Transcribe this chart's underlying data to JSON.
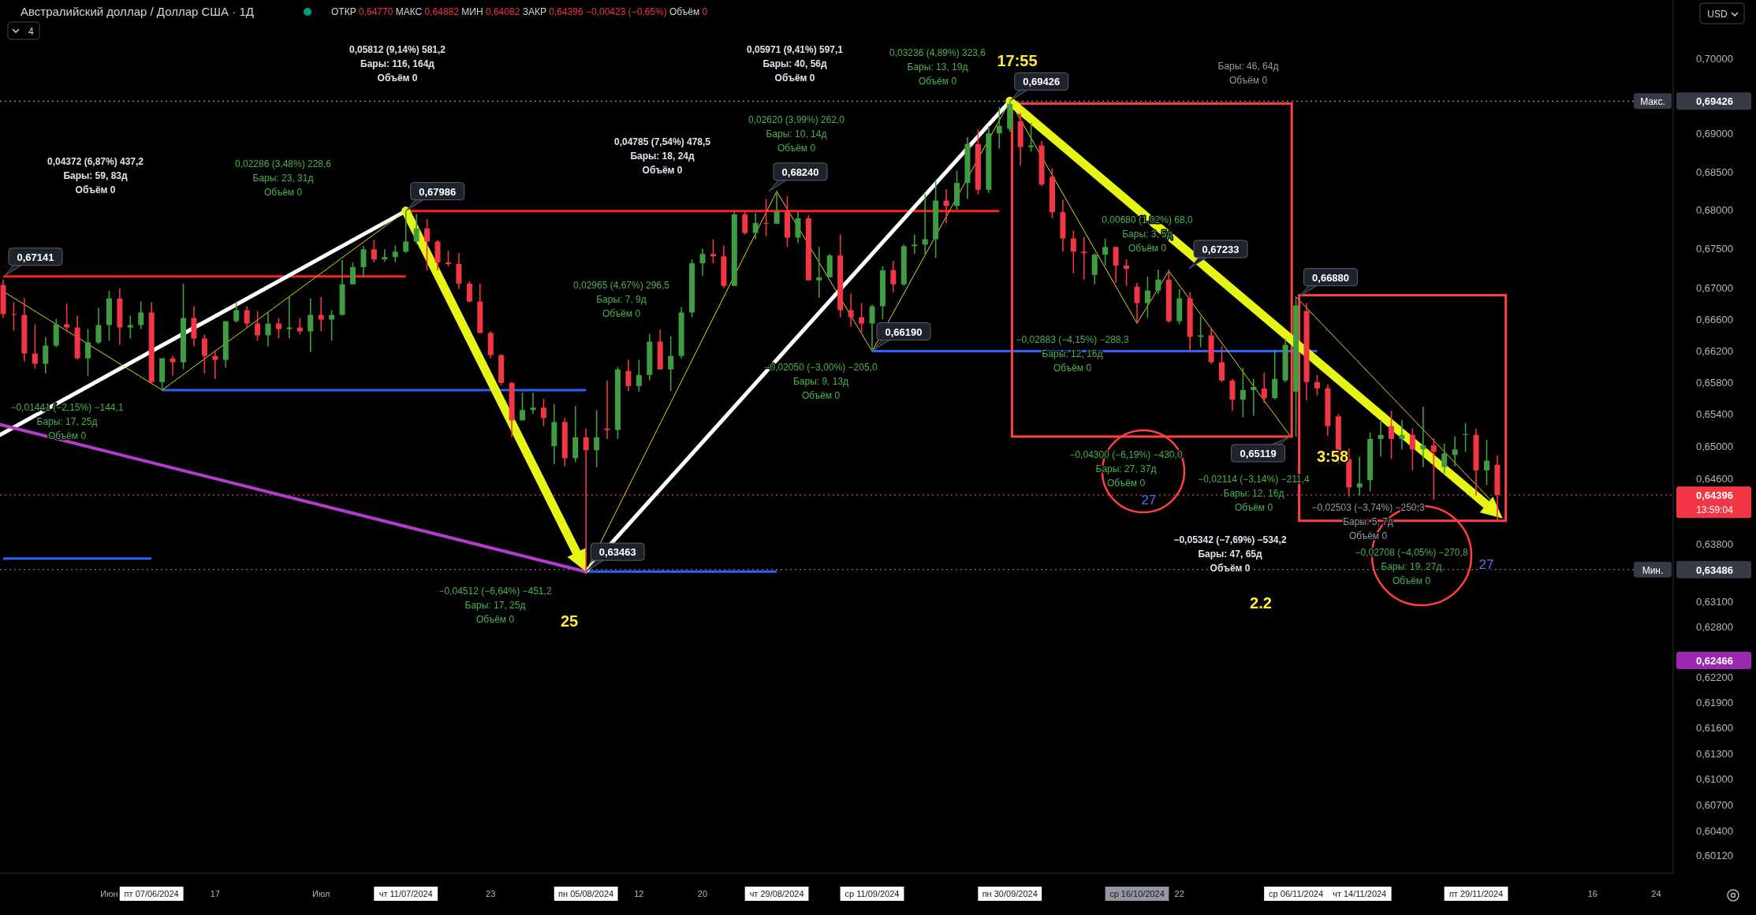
{
  "chart_data": {
    "type": "candlestick",
    "title": "Австралийский доллар / Доллар США · 1Д",
    "subtitle": "ОТКР 0,64770 МАКС 0,64882 МИН 0,64082 ЗАКР 0,64396 −0,00423 (−0,65%) Объём 0",
    "log": true,
    "ylim": [
      0.5991,
      0.7078
    ],
    "yticks": [
      {
        "value": 0.7,
        "label": "0,70000"
      },
      {
        "value": 0.69,
        "label": "0,69000"
      },
      {
        "value": 0.685,
        "label": "0,68500"
      },
      {
        "value": 0.68,
        "label": "0,68000"
      },
      {
        "value": 0.675,
        "label": "0,67500"
      },
      {
        "value": 0.67,
        "label": "0,67000"
      },
      {
        "value": 0.666,
        "label": "0,66600"
      },
      {
        "value": 0.662,
        "label": "0,66200"
      },
      {
        "value": 0.658,
        "label": "0,65800"
      },
      {
        "value": 0.654,
        "label": "0,65400"
      },
      {
        "value": 0.65,
        "label": "0,65000"
      },
      {
        "value": 0.646,
        "label": "0,64600"
      },
      {
        "value": 0.638,
        "label": "0,63800"
      },
      {
        "value": 0.631,
        "label": "0,63100"
      },
      {
        "value": 0.628,
        "label": "0,62800"
      },
      {
        "value": 0.622,
        "label": "0,62200"
      },
      {
        "value": 0.619,
        "label": "0,61900"
      },
      {
        "value": 0.616,
        "label": "0,61600"
      },
      {
        "value": 0.613,
        "label": "0,61300"
      },
      {
        "value": 0.61,
        "label": "0,61000"
      },
      {
        "value": 0.607,
        "label": "0,60700"
      },
      {
        "value": 0.604,
        "label": "0,60400"
      },
      {
        "value": 0.6012,
        "label": "0,60120"
      }
    ],
    "categories": [
      null,
      null,
      null,
      null,
      null,
      null,
      null,
      null,
      null,
      null,
      "Июн",
      null,
      null,
      null,
      "пт 07/06/2024",
      null,
      null,
      null,
      null,
      null,
      "17",
      null,
      null,
      null,
      null,
      null,
      null,
      null,
      null,
      null,
      "Июл",
      null,
      null,
      null,
      null,
      null,
      null,
      null,
      "чт 11/07/2024",
      null,
      null,
      null,
      null,
      null,
      null,
      null,
      "23",
      null,
      null,
      null,
      null,
      null,
      null,
      null,
      null,
      "пн 05/08/2024",
      null,
      null,
      null,
      null,
      "12",
      null,
      null,
      null,
      null,
      null,
      "20",
      null,
      null,
      null,
      null,
      null,
      null,
      "чт 29/08/2024",
      null,
      null,
      null,
      null,
      null,
      null,
      null,
      null,
      "ср 11/09/2024",
      null,
      null,
      null,
      null,
      null,
      null,
      null,
      null,
      null,
      null,
      null,
      null,
      "пн 30/09/2024",
      null,
      null,
      null,
      null,
      null,
      null,
      null,
      null,
      null,
      null,
      null,
      "ср 16/10/2024",
      null,
      null,
      null,
      "22",
      null,
      null,
      null,
      null,
      null,
      null,
      null,
      null,
      null,
      null,
      "ср 06/11/2024",
      null,
      null,
      null,
      null,
      null,
      "чт 14/11/2024",
      null,
      null,
      null,
      null,
      null,
      null,
      null,
      null,
      null,
      null,
      "пт 29/11/2024",
      null,
      null,
      null,
      null,
      null,
      null,
      null,
      null,
      null,
      null,
      "16",
      null,
      null,
      null,
      null,
      null,
      "24",
      null
    ],
    "ohlc": [
      [
        0.6703,
        0.671,
        0.6661,
        0.6666
      ],
      [
        0.6666,
        0.6681,
        0.6645,
        0.6665
      ],
      [
        0.6665,
        0.6686,
        0.6606,
        0.6616
      ],
      [
        0.6616,
        0.6653,
        0.6597,
        0.6603
      ],
      [
        0.6603,
        0.6637,
        0.6591,
        0.6626
      ],
      [
        0.6626,
        0.666,
        0.6624,
        0.6653
      ],
      [
        0.6653,
        0.6679,
        0.6644,
        0.6649
      ],
      [
        0.6649,
        0.6664,
        0.6608,
        0.661
      ],
      [
        0.661,
        0.6647,
        0.6588,
        0.663
      ],
      [
        0.663,
        0.6674,
        0.6628,
        0.6652
      ],
      [
        0.6652,
        0.6696,
        0.6632,
        0.6686
      ],
      [
        0.6686,
        0.6699,
        0.6627,
        0.6649
      ],
      [
        0.6649,
        0.6664,
        0.6635,
        0.6652
      ],
      [
        0.6652,
        0.6682,
        0.6647,
        0.6668
      ],
      [
        0.6668,
        0.6681,
        0.6579,
        0.658
      ],
      [
        0.658,
        0.661,
        0.657,
        0.661
      ],
      [
        0.661,
        0.6613,
        0.6588,
        0.6605
      ],
      [
        0.6605,
        0.6705,
        0.6596,
        0.6661
      ],
      [
        0.6661,
        0.6676,
        0.6625,
        0.6635
      ],
      [
        0.6635,
        0.664,
        0.6591,
        0.6613
      ],
      [
        0.6613,
        0.662,
        0.6584,
        0.6608
      ],
      [
        0.6608,
        0.6657,
        0.6598,
        0.6657
      ],
      [
        0.6657,
        0.6681,
        0.6655,
        0.6671
      ],
      [
        0.6671,
        0.6676,
        0.6649,
        0.6654
      ],
      [
        0.6654,
        0.667,
        0.6632,
        0.6639
      ],
      [
        0.6639,
        0.6669,
        0.6625,
        0.6654
      ],
      [
        0.6654,
        0.6661,
        0.6635,
        0.6647
      ],
      [
        0.6647,
        0.6688,
        0.6635,
        0.6649
      ],
      [
        0.6649,
        0.6661,
        0.664,
        0.6644
      ],
      [
        0.6644,
        0.6686,
        0.6618,
        0.6665
      ],
      [
        0.6665,
        0.6688,
        0.6644,
        0.6659
      ],
      [
        0.6659,
        0.6671,
        0.6632,
        0.6665
      ],
      [
        0.6665,
        0.6735,
        0.6664,
        0.6704
      ],
      [
        0.6704,
        0.6732,
        0.6704,
        0.6726
      ],
      [
        0.6726,
        0.6753,
        0.6713,
        0.6749
      ],
      [
        0.6749,
        0.6761,
        0.6732,
        0.6736
      ],
      [
        0.6736,
        0.6749,
        0.6733,
        0.6739
      ],
      [
        0.6739,
        0.6754,
        0.6732,
        0.6746
      ],
      [
        0.6746,
        0.67986,
        0.6744,
        0.6759
      ],
      [
        0.6759,
        0.6795,
        0.6756,
        0.6776
      ],
      [
        0.6776,
        0.6788,
        0.6722,
        0.6759
      ],
      [
        0.6759,
        0.6761,
        0.6722,
        0.6732
      ],
      [
        0.6732,
        0.6747,
        0.6727,
        0.673
      ],
      [
        0.673,
        0.6744,
        0.6698,
        0.6705
      ],
      [
        0.6705,
        0.6708,
        0.6681,
        0.6682
      ],
      [
        0.6682,
        0.6705,
        0.6642,
        0.6642
      ],
      [
        0.6642,
        0.6644,
        0.661,
        0.6614
      ],
      [
        0.6614,
        0.6615,
        0.6576,
        0.6579
      ],
      [
        0.6579,
        0.658,
        0.6511,
        0.6532
      ],
      [
        0.6532,
        0.6567,
        0.6532,
        0.6545
      ],
      [
        0.6545,
        0.6567,
        0.654,
        0.6548
      ],
      [
        0.6548,
        0.6559,
        0.6525,
        0.6535
      ],
      [
        0.65,
        0.6552,
        0.6478,
        0.653
      ],
      [
        0.653,
        0.6535,
        0.6475,
        0.6485
      ],
      [
        0.6485,
        0.655,
        0.648,
        0.6511
      ],
      [
        0.6511,
        0.6522,
        0.63463,
        0.6495
      ],
      [
        0.6495,
        0.6545,
        0.6474,
        0.6511
      ],
      [
        0.6522,
        0.6582,
        0.6509,
        0.652
      ],
      [
        0.652,
        0.6599,
        0.6509,
        0.6596
      ],
      [
        0.6594,
        0.6608,
        0.6569,
        0.6575
      ],
      [
        0.6575,
        0.6608,
        0.6568,
        0.6589
      ],
      [
        0.6589,
        0.6641,
        0.6582,
        0.6631
      ],
      [
        0.6631,
        0.6646,
        0.6596,
        0.6596
      ],
      [
        0.6596,
        0.6638,
        0.6569,
        0.6613
      ],
      [
        0.6613,
        0.6675,
        0.661,
        0.6668
      ],
      [
        0.6668,
        0.6736,
        0.6662,
        0.6731
      ],
      [
        0.6731,
        0.675,
        0.6715,
        0.6743
      ],
      [
        0.6743,
        0.6762,
        0.6731,
        0.674
      ],
      [
        0.674,
        0.6754,
        0.6699,
        0.6702
      ],
      [
        0.6702,
        0.6798,
        0.6702,
        0.6794
      ],
      [
        0.6794,
        0.6798,
        0.6768,
        0.677
      ],
      [
        0.677,
        0.6796,
        0.6762,
        0.6783
      ],
      [
        0.6783,
        0.6814,
        0.6766,
        0.6782
      ],
      [
        0.6782,
        0.6824,
        0.6782,
        0.6798
      ],
      [
        0.6798,
        0.6818,
        0.6752,
        0.6764
      ],
      [
        0.6764,
        0.6797,
        0.6757,
        0.6789
      ],
      [
        0.6789,
        0.6793,
        0.6709,
        0.6709
      ],
      [
        0.6709,
        0.6752,
        0.6687,
        0.6713
      ],
      [
        0.6713,
        0.6743,
        0.6713,
        0.6741
      ],
      [
        0.6741,
        0.6768,
        0.6662,
        0.6671
      ],
      [
        0.6671,
        0.6692,
        0.665,
        0.6662
      ],
      [
        0.6662,
        0.668,
        0.6643,
        0.6654
      ],
      [
        0.6654,
        0.6678,
        0.6619,
        0.6676
      ],
      [
        0.6676,
        0.6727,
        0.6659,
        0.6722
      ],
      [
        0.6722,
        0.6734,
        0.6694,
        0.6704
      ],
      [
        0.6704,
        0.6755,
        0.6702,
        0.6753
      ],
      [
        0.6753,
        0.6768,
        0.6743,
        0.6755
      ],
      [
        0.6755,
        0.6821,
        0.6743,
        0.6762
      ],
      [
        0.6762,
        0.6839,
        0.6738,
        0.6812
      ],
      [
        0.6812,
        0.6827,
        0.6783,
        0.6805
      ],
      [
        0.6805,
        0.6851,
        0.68,
        0.6835
      ],
      [
        0.6835,
        0.6895,
        0.6814,
        0.6886
      ],
      [
        0.6886,
        0.6905,
        0.682,
        0.6826
      ],
      [
        0.6826,
        0.691,
        0.6822,
        0.69
      ],
      [
        0.69,
        0.6935,
        0.688,
        0.691
      ],
      [
        0.6906,
        0.69426,
        0.6902,
        0.6939
      ],
      [
        0.6916,
        0.6927,
        0.6858,
        0.6882
      ],
      [
        0.6882,
        0.6914,
        0.6876,
        0.6884
      ],
      [
        0.6884,
        0.689,
        0.6831,
        0.6833
      ],
      [
        0.6843,
        0.6854,
        0.6789,
        0.6797
      ],
      [
        0.6797,
        0.6813,
        0.6746,
        0.6763
      ],
      [
        0.6763,
        0.6773,
        0.6718,
        0.6746
      ],
      [
        0.6746,
        0.6765,
        0.671,
        0.6744
      ],
      [
        0.6716,
        0.6744,
        0.6704,
        0.6742
      ],
      [
        0.6742,
        0.6763,
        0.6728,
        0.6752
      ],
      [
        0.6752,
        0.6752,
        0.6706,
        0.6728
      ],
      [
        0.6728,
        0.6736,
        0.6702,
        0.6724
      ],
      [
        0.6701,
        0.6706,
        0.66543,
        0.668
      ],
      [
        0.668,
        0.6714,
        0.6661,
        0.6696
      ],
      [
        0.6696,
        0.6723,
        0.6692,
        0.671
      ],
      [
        0.671,
        0.67233,
        0.6655,
        0.6657
      ],
      [
        0.6657,
        0.6698,
        0.6653,
        0.6686
      ],
      [
        0.6686,
        0.6694,
        0.6617,
        0.6637
      ],
      [
        0.6637,
        0.6663,
        0.6624,
        0.6639
      ],
      [
        0.6639,
        0.6649,
        0.6603,
        0.6605
      ],
      [
        0.6605,
        0.6625,
        0.658,
        0.6582
      ],
      [
        0.6582,
        0.6584,
        0.6544,
        0.6558
      ],
      [
        0.6558,
        0.6598,
        0.6536,
        0.657
      ],
      [
        0.657,
        0.6584,
        0.6538,
        0.6574
      ],
      [
        0.6572,
        0.6592,
        0.6554,
        0.656
      ],
      [
        0.656,
        0.6621,
        0.6558,
        0.6584
      ],
      [
        0.6582,
        0.6635,
        0.658,
        0.6627
      ],
      [
        0.6568,
        0.6688,
        0.65119,
        0.6677
      ],
      [
        0.667,
        0.668,
        0.6557,
        0.658
      ],
      [
        0.658,
        0.6589,
        0.6563,
        0.6572
      ],
      [
        0.6572,
        0.6577,
        0.6513,
        0.6525
      ],
      [
        0.6537,
        0.654,
        0.6479,
        0.6484
      ],
      [
        0.6484,
        0.6497,
        0.6438,
        0.6449
      ],
      [
        0.6449,
        0.6487,
        0.6439,
        0.6454
      ],
      [
        0.6458,
        0.6517,
        0.6444,
        0.6509
      ],
      [
        0.6509,
        0.6533,
        0.6487,
        0.6514
      ],
      [
        0.6525,
        0.6544,
        0.6484,
        0.6509
      ],
      [
        0.6509,
        0.6533,
        0.6496,
        0.6514
      ],
      [
        0.6514,
        0.6522,
        0.647,
        0.6496
      ],
      [
        0.6496,
        0.6549,
        0.6474,
        0.6501
      ],
      [
        0.6501,
        0.651,
        0.6434,
        0.6493
      ],
      [
        0.6474,
        0.6503,
        0.6466,
        0.6491
      ],
      [
        0.6489,
        0.6512,
        0.6475,
        0.6496
      ],
      [
        0.6514,
        0.6529,
        0.6493,
        0.6515
      ],
      [
        0.6514,
        0.6522,
        0.6439,
        0.647
      ],
      [
        0.647,
        0.6508,
        0.6452,
        0.6482
      ],
      [
        0.6477,
        0.64882,
        0.64082,
        0.64396
      ],
      null,
      null,
      null,
      null,
      null,
      null,
      null,
      null,
      null,
      null,
      null,
      null,
      null,
      null,
      null,
      null
    ],
    "ref_lines": [
      {
        "axis": "y",
        "value": 0.69426,
        "label": "0,69426",
        "color": "#9598a1",
        "line_style": "dotted"
      },
      {
        "axis": "y",
        "value": 0.63486,
        "label": "0,63486",
        "color": "#9598a1",
        "line_style": "dotted"
      },
      {
        "axis": "y",
        "value": 0.64396,
        "label": "0,64396",
        "color": "#f23645",
        "line_style": "dotted"
      },
      {
        "axis": "y",
        "value": 0.67141,
        "color": "#ff1f1f",
        "line_style": "solid"
      },
      {
        "axis": "y",
        "value": 0.67986,
        "color": "#ff1f1f",
        "line_style": "solid"
      },
      {
        "axis": "y",
        "value": 0.657,
        "color": "#2962ff",
        "line_style": "solid"
      },
      {
        "axis": "y",
        "value": 0.63463,
        "color": "#2962ff",
        "line_style": "solid"
      },
      {
        "axis": "y",
        "value": 0.6619,
        "color": "#2962ff",
        "line_style": "solid"
      },
      {
        "axis": "y",
        "value": 0.6362,
        "color": "#2962ff",
        "line_style": "solid"
      }
    ],
    "annotations": [
      "0,05812 (9,14%) 581,2\nБары: 116, 164д\nОбъём 0",
      "0,05971 (9,41%) 597,1\nБары: 40, 56д\nОбъём 0",
      "0,03236 (4,89%) 323,6\nБары: 13, 19д\nОбъём 0",
      "Бары: 46, 64д\nОбъём 0",
      "0,04372 (6,87%) 437,2\nБары: 59, 83д\nОбъём 0",
      "0,02286 (3,48%) 228,6\nБары: 23, 31д\nОбъём 0",
      "0,04785 (7,54%) 478,5\nБары: 18, 24д\nОбъём 0",
      "0,02620 (3,99%) 262,0\nБары: 10, 14д\nОбъём 0",
      "0,02965 (4,67%) 296,5\nБары: 7, 9д\nОбъём 0",
      {
        "text": "−0,02050 (−3,00%) −205,0\nБары: 9, 13д\nОбъём 0",
        "x": "ср 11/09/2024",
        "y": 0.6619
      },
      "0,00680 (1,02%) 68,0\nБары: 3, 5д\nОбъём 0",
      "−0,02883 (−4,15%) −288,3\nБары: 12, 16д\nОбъём 0",
      "−0,04300 (−6,19%) −430,0\nБары: 27, 37д\nОбъём 0",
      "−0,02114 (−3,14%) −211,4\nБары: 12, 16д\nОбъём 0",
      "−0,05342 (−7,69%) −534,2\nБары: 47, 65д\nОбъём 0",
      "−0,02503 (−3,74%) −250,3\nБары: 5, 7д\nОбъём 0",
      "−0,02708 (−4,05%) −270,8\nБары: 19, 27д\nОбъём 0",
      "−0,01441 (−2,15%) −144,1\nБары: 17, 25д\nОбъём 0",
      "−0,04512 (−6,64%) −451,2\nБары: 17, 25д\nОбъём 0",
      "17:55",
      "3:58",
      "25",
      "2.2",
      "27",
      "27",
      {
        "text": "0,67141",
        "y": 0.67141
      },
      {
        "text": "0,67986",
        "x": "чт 11/07/2024",
        "y": 0.67986
      },
      {
        "text": "0,68240",
        "x": "чт 29/08/2024",
        "y": 0.6824
      },
      {
        "text": "0,66190",
        "x": "ср 11/09/2024",
        "y": 0.6619
      },
      {
        "text": "0,63463",
        "x": "пн 05/08/2024",
        "y": 0.63463
      },
      {
        "text": "0,69426",
        "x": "пн 30/09/2024",
        "y": 0.69426
      },
      "0,67233",
      {
        "text": "0,66880",
        "x": "ср 06/11/2024",
        "y": 0.6688
      },
      {
        "text": "0,65119",
        "x": "ср 06/11/2024",
        "y": 0.65119
      },
      "0,62466",
      "4",
      "USD",
      "Макс.",
      "Мин.",
      "13:59:04"
    ]
  }
}
